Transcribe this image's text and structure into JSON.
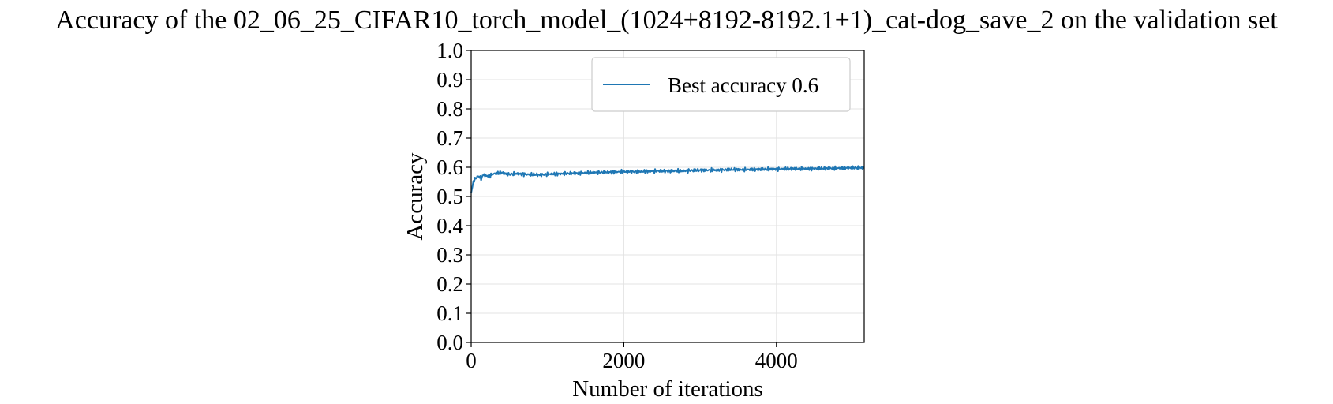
{
  "chart_data": {
    "type": "line",
    "title": "Accuracy of the 02_06_25_CIFAR10_torch_model_(1024+8192-8192.1+1)_cat-dog_save_2 on the validation set",
    "xlabel": "Number of iterations",
    "ylabel": "Accuracy",
    "xlim": [
      0,
      5150
    ],
    "ylim": [
      0.0,
      1.0
    ],
    "xticks": [
      0,
      2000,
      4000
    ],
    "yticks": [
      0.0,
      0.1,
      0.2,
      0.3,
      0.4,
      0.5,
      0.6,
      0.7,
      0.8,
      0.9,
      1.0
    ],
    "grid": true,
    "legend_position": "top-right",
    "series": [
      {
        "name": "Best accuracy 0.6",
        "color": "#1f77b4",
        "x": [
          0,
          15,
          30,
          50,
          70,
          100,
          130,
          160,
          200,
          250,
          300,
          350,
          400,
          450,
          500,
          600,
          700,
          800,
          900,
          1000,
          1200,
          1400,
          1600,
          1800,
          2000,
          2200,
          2400,
          2600,
          2800,
          3000,
          3200,
          3400,
          3600,
          3800,
          4000,
          4200,
          4400,
          4600,
          4800,
          5000,
          5150
        ],
        "values": [
          0.51,
          0.53,
          0.55,
          0.56,
          0.565,
          0.57,
          0.56,
          0.575,
          0.57,
          0.572,
          0.578,
          0.58,
          0.582,
          0.578,
          0.576,
          0.578,
          0.576,
          0.575,
          0.574,
          0.576,
          0.578,
          0.58,
          0.582,
          0.583,
          0.585,
          0.585,
          0.587,
          0.587,
          0.588,
          0.59,
          0.59,
          0.592,
          0.592,
          0.593,
          0.594,
          0.595,
          0.595,
          0.596,
          0.597,
          0.598,
          0.598
        ]
      }
    ]
  }
}
